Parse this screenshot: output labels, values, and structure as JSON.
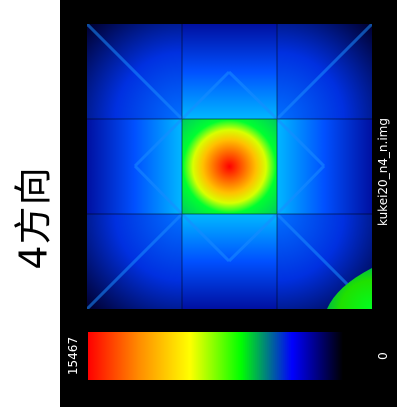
{
  "side_label": "4方向",
  "filename": "kukei20_n4_n.img",
  "colorbar": {
    "max_label": "15467",
    "min_label": "0",
    "stops": [
      "#ff0000",
      "#ff8c00",
      "#ffff00",
      "#00ff00",
      "#0000ff",
      "#000000"
    ]
  },
  "image": {
    "description_colors": {
      "hot": "#ff0000",
      "warm": "#ffd800",
      "mid": "#00ff00",
      "cool": "#0033ff",
      "cold": "#000066"
    }
  }
}
